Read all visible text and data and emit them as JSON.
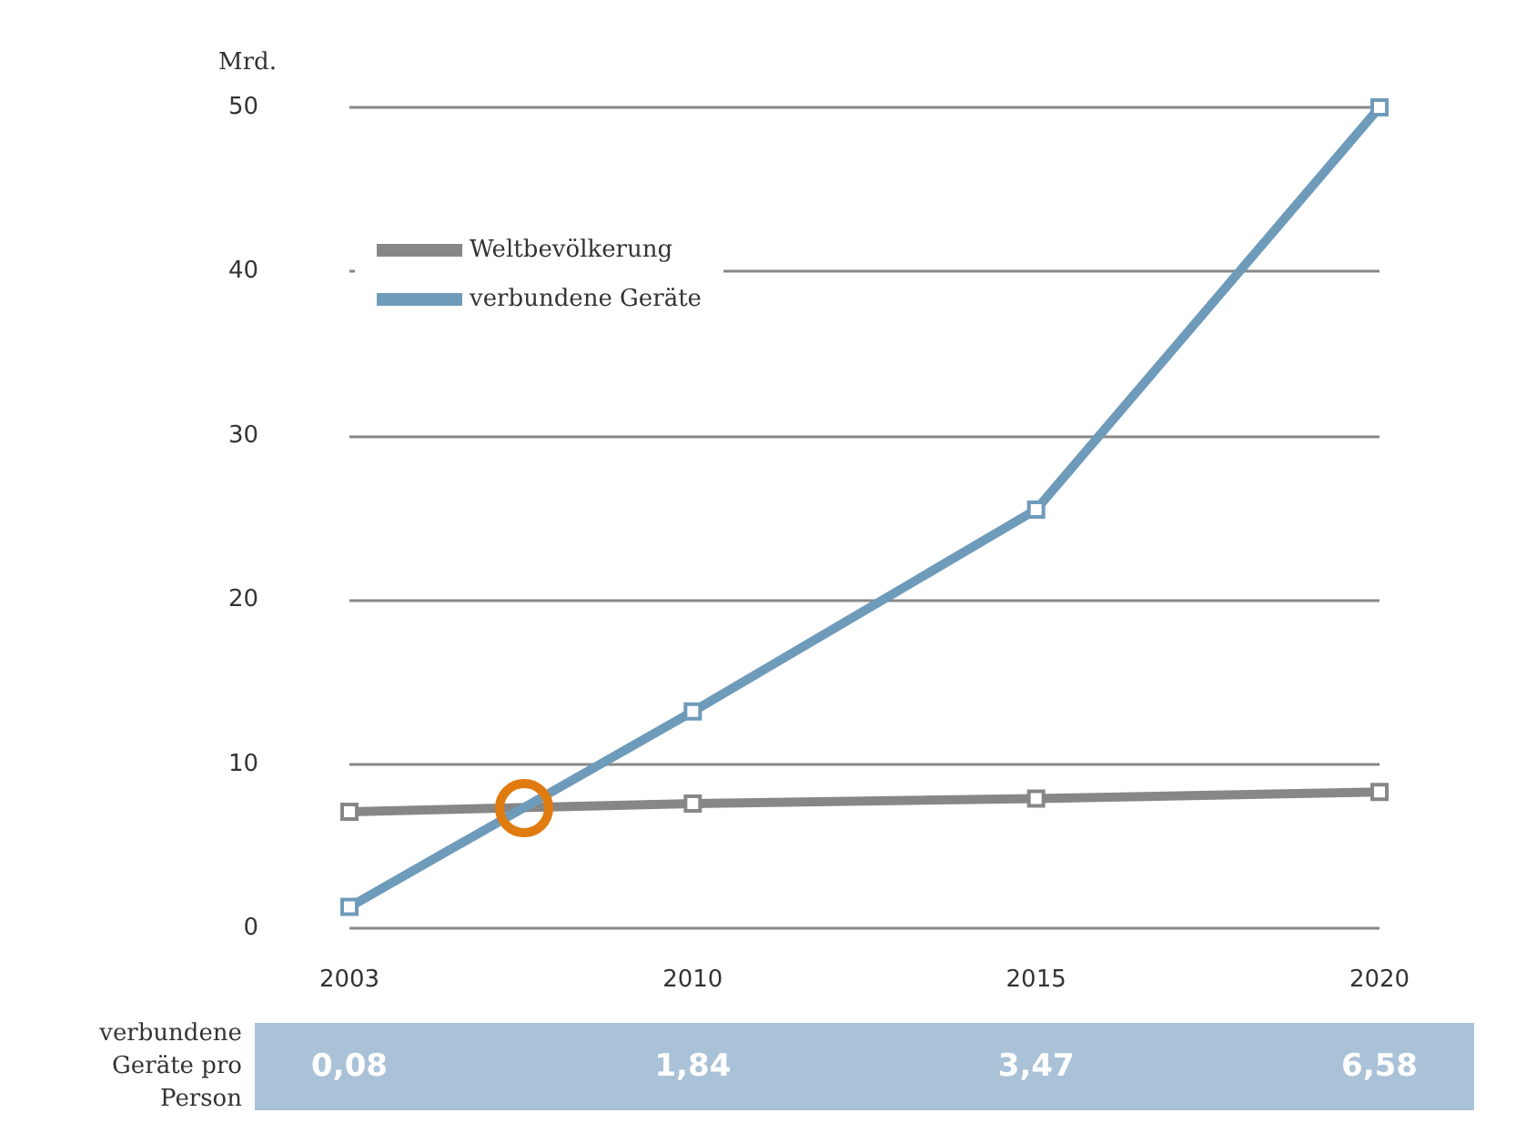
{
  "chart_data": {
    "type": "line",
    "ylabel": "Mrd.",
    "categories": [
      "2003",
      "2010",
      "2015",
      "2020"
    ],
    "series": [
      {
        "name": "Weltbevölkerung",
        "color": "#878787",
        "values": [
          7.1,
          7.6,
          7.9,
          8.3
        ]
      },
      {
        "name": "verbundene Geräte",
        "color": "#6f9bbb",
        "values": [
          1.3,
          13.2,
          25.5,
          50
        ]
      }
    ],
    "ylim": [
      0,
      50
    ],
    "yticks": [
      0,
      10,
      20,
      30,
      40,
      50
    ],
    "grid": "y",
    "legend": "top left",
    "marker": "square",
    "line_style": "solid",
    "annotations": [
      "verbundene\nGeräte pro\nPerson",
      "0,08",
      "1,84",
      "3,47",
      "6,58"
    ]
  }
}
